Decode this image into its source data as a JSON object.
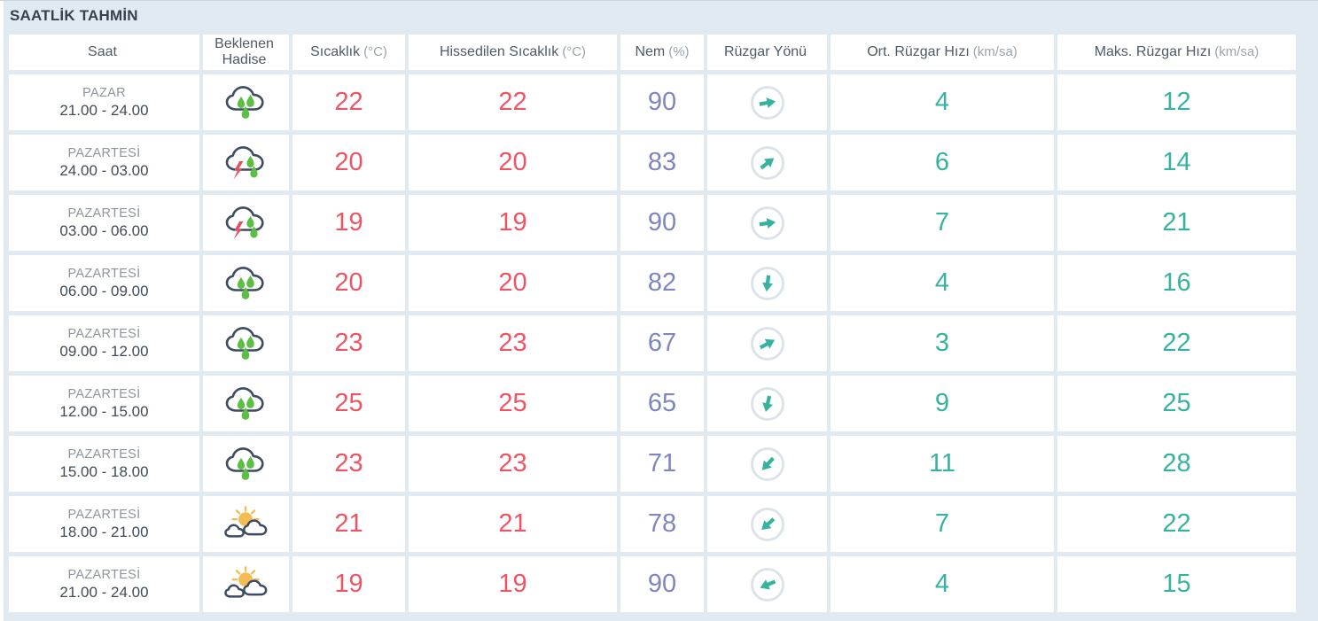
{
  "page": {
    "title": "SAATLİK TAHMİN"
  },
  "colors": {
    "temperature_text": "#ed5565",
    "humidity_text": "#7f85c0",
    "wind_text": "#36b39e",
    "cloud_outline": "#3e4c63",
    "rain_drop": "#5abf43",
    "lightning": "#e84d5f",
    "sun": "#f4bc55",
    "arrow_ring": "#dce3e9"
  },
  "table": {
    "columns": [
      {
        "label": "Saat",
        "unit": ""
      },
      {
        "label": "Beklenen Hadise",
        "unit": ""
      },
      {
        "label": "Sıcaklık",
        "unit": "(°C)"
      },
      {
        "label": "Hissedilen Sıcaklık",
        "unit": "(°C)"
      },
      {
        "label": "Nem",
        "unit": "(%)"
      },
      {
        "label": "Rüzgar Yönü",
        "unit": ""
      },
      {
        "label": "Ort. Rüzgar Hızı",
        "unit": "(km/sa)"
      },
      {
        "label": "Maks. Rüzgar Hızı",
        "unit": "(km/sa)"
      }
    ],
    "rows": [
      {
        "day": "PAZAR",
        "time": "21.00 - 24.00",
        "weather_icon": "rainy-icon",
        "temp": "22",
        "feels": "22",
        "humidity": "90",
        "wind_dir_deg": -10,
        "avg_wind": "4",
        "max_wind": "12"
      },
      {
        "day": "PAZARTESİ",
        "time": "24.00 - 03.00",
        "weather_icon": "thunderstorm-icon",
        "temp": "20",
        "feels": "20",
        "humidity": "83",
        "wind_dir_deg": -38,
        "avg_wind": "6",
        "max_wind": "14"
      },
      {
        "day": "PAZARTESİ",
        "time": "03.00 - 06.00",
        "weather_icon": "thunderstorm-icon",
        "temp": "19",
        "feels": "19",
        "humidity": "90",
        "wind_dir_deg": -8,
        "avg_wind": "7",
        "max_wind": "21"
      },
      {
        "day": "PAZARTESİ",
        "time": "06.00 - 09.00",
        "weather_icon": "rainy-icon",
        "temp": "20",
        "feels": "20",
        "humidity": "82",
        "wind_dir_deg": 97,
        "avg_wind": "4",
        "max_wind": "16"
      },
      {
        "day": "PAZARTESİ",
        "time": "09.00 - 12.00",
        "weather_icon": "rainy-icon",
        "temp": "23",
        "feels": "23",
        "humidity": "67",
        "wind_dir_deg": -28,
        "avg_wind": "3",
        "max_wind": "22"
      },
      {
        "day": "PAZARTESİ",
        "time": "12.00 - 15.00",
        "weather_icon": "rainy-icon",
        "temp": "25",
        "feels": "25",
        "humidity": "65",
        "wind_dir_deg": 103,
        "avg_wind": "9",
        "max_wind": "25"
      },
      {
        "day": "PAZARTESİ",
        "time": "15.00 - 18.00",
        "weather_icon": "rainy-icon",
        "temp": "23",
        "feels": "23",
        "humidity": "71",
        "wind_dir_deg": 133,
        "avg_wind": "11",
        "max_wind": "28"
      },
      {
        "day": "PAZARTESİ",
        "time": "18.00 - 21.00",
        "weather_icon": "partly-cloudy-icon",
        "temp": "21",
        "feels": "21",
        "humidity": "78",
        "wind_dir_deg": 138,
        "avg_wind": "7",
        "max_wind": "22"
      },
      {
        "day": "PAZARTESİ",
        "time": "21.00 - 24.00",
        "weather_icon": "partly-cloudy-icon",
        "temp": "19",
        "feels": "19",
        "humidity": "90",
        "wind_dir_deg": 157,
        "avg_wind": "4",
        "max_wind": "15"
      }
    ]
  }
}
